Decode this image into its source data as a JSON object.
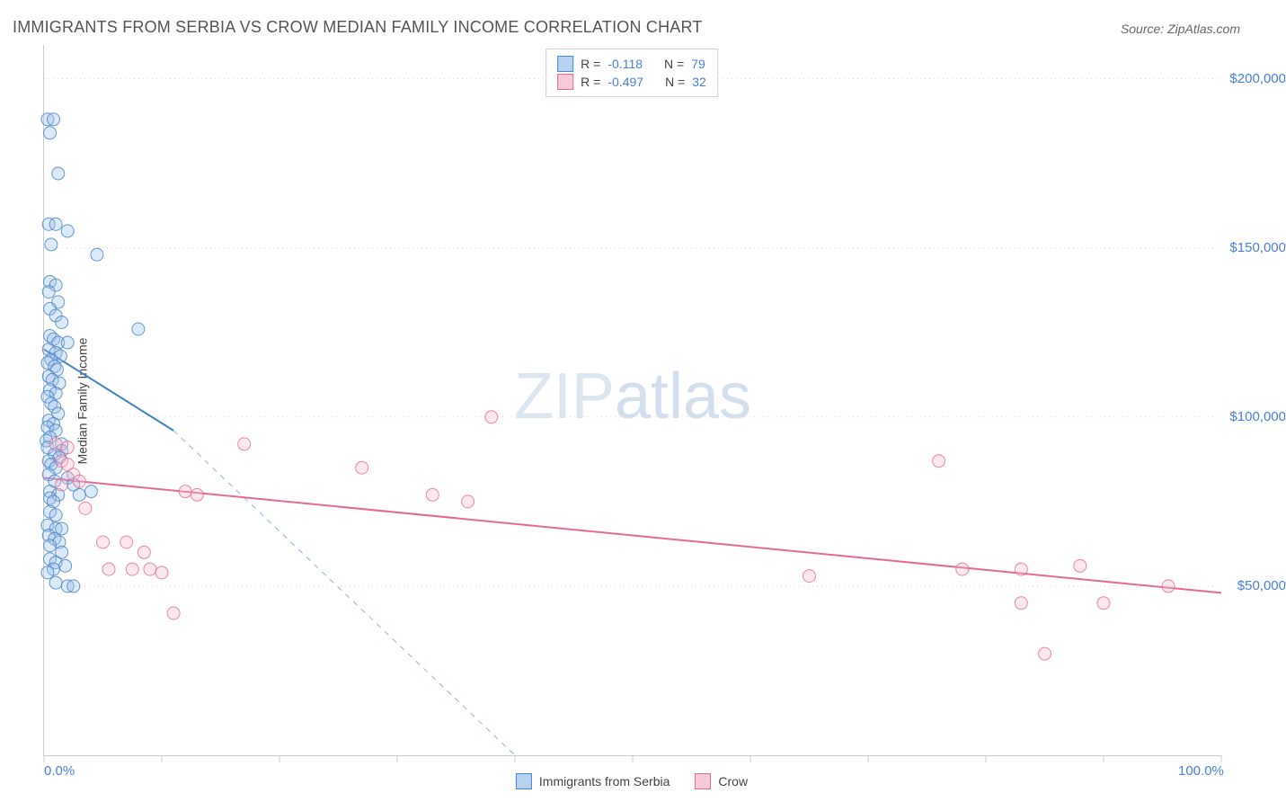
{
  "title": "IMMIGRANTS FROM SERBIA VS CROW MEDIAN FAMILY INCOME CORRELATION CHART",
  "source": "Source: ZipAtlas.com",
  "watermark_bold": "ZIP",
  "watermark_thin": "atlas",
  "chart": {
    "type": "scatter",
    "ylabel": "Median Family Income",
    "background_color": "#ffffff",
    "grid_color": "#d6d6d6",
    "axis_color": "#cccccc",
    "tick_label_color": "#4a7fd6",
    "tick_fontsize": 15,
    "title_fontsize": 18,
    "title_color": "#555555",
    "ylabel_fontsize": 14,
    "xlim": [
      0,
      100
    ],
    "ylim": [
      0,
      210000
    ],
    "xticks": [
      0,
      10,
      20,
      30,
      40,
      50,
      60,
      70,
      80,
      90,
      100
    ],
    "yticks": [
      50000,
      100000,
      150000,
      200000
    ],
    "xtick_labels": {
      "0": "0.0%",
      "100": "100.0%"
    },
    "ytick_labels": {
      "50000": "$50,000",
      "100000": "$100,000",
      "150000": "$150,000",
      "200000": "$200,000"
    },
    "marker_radius": 7,
    "marker_fill_opacity": 0.35,
    "series": [
      {
        "name": "Immigrants from Serbia",
        "color": "#4680c7",
        "fill": "#9cc1e8",
        "R": "-0.118",
        "N": "79",
        "trend": {
          "x1": 0,
          "y1": 120000,
          "x2": 11,
          "y2": 96000,
          "dash_x2": 40,
          "dash_y2": 0,
          "stroke_width": 2
        },
        "points": [
          [
            0.3,
            188000
          ],
          [
            0.8,
            188000
          ],
          [
            0.5,
            184000
          ],
          [
            1.2,
            172000
          ],
          [
            0.4,
            157000
          ],
          [
            1.0,
            157000
          ],
          [
            2.0,
            155000
          ],
          [
            0.6,
            151000
          ],
          [
            4.5,
            148000
          ],
          [
            0.5,
            140000
          ],
          [
            1.0,
            139000
          ],
          [
            0.4,
            137000
          ],
          [
            1.2,
            134000
          ],
          [
            0.5,
            132000
          ],
          [
            1.0,
            130000
          ],
          [
            1.5,
            128000
          ],
          [
            8.0,
            126000
          ],
          [
            0.5,
            124000
          ],
          [
            0.8,
            123000
          ],
          [
            1.2,
            122000
          ],
          [
            2.0,
            122000
          ],
          [
            0.4,
            120000
          ],
          [
            1.0,
            119000
          ],
          [
            1.4,
            118000
          ],
          [
            0.6,
            117000
          ],
          [
            0.3,
            116000
          ],
          [
            0.9,
            115000
          ],
          [
            1.1,
            114000
          ],
          [
            0.4,
            112000
          ],
          [
            0.7,
            111000
          ],
          [
            1.3,
            110000
          ],
          [
            0.5,
            108000
          ],
          [
            1.0,
            107000
          ],
          [
            0.3,
            106000
          ],
          [
            0.6,
            104000
          ],
          [
            0.9,
            103000
          ],
          [
            1.2,
            101000
          ],
          [
            0.4,
            99000
          ],
          [
            0.8,
            98000
          ],
          [
            0.3,
            97000
          ],
          [
            1.0,
            96000
          ],
          [
            0.5,
            94000
          ],
          [
            0.2,
            93000
          ],
          [
            1.5,
            92000
          ],
          [
            0.3,
            91000
          ],
          [
            1.5,
            90000
          ],
          [
            0.9,
            89000
          ],
          [
            1.3,
            88000
          ],
          [
            0.4,
            87000
          ],
          [
            0.6,
            86000
          ],
          [
            1.0,
            85000
          ],
          [
            0.4,
            83000
          ],
          [
            2.0,
            82000
          ],
          [
            0.9,
            81000
          ],
          [
            2.5,
            80000
          ],
          [
            0.5,
            78000
          ],
          [
            1.2,
            77000
          ],
          [
            3.0,
            77000
          ],
          [
            0.5,
            76000
          ],
          [
            0.8,
            75000
          ],
          [
            4.0,
            78000
          ],
          [
            0.5,
            72000
          ],
          [
            1.0,
            71000
          ],
          [
            0.3,
            68000
          ],
          [
            1.0,
            67000
          ],
          [
            1.5,
            67000
          ],
          [
            0.4,
            65000
          ],
          [
            0.9,
            64000
          ],
          [
            1.3,
            63000
          ],
          [
            0.5,
            62000
          ],
          [
            1.5,
            60000
          ],
          [
            0.5,
            58000
          ],
          [
            1.0,
            57000
          ],
          [
            1.8,
            56000
          ],
          [
            0.8,
            55000
          ],
          [
            0.3,
            54000
          ],
          [
            1.0,
            51000
          ],
          [
            2.0,
            50000
          ],
          [
            2.5,
            50000
          ]
        ]
      },
      {
        "name": "Crow",
        "color": "#e56b95",
        "fill": "#f5bccc",
        "R": "-0.497",
        "N": "32",
        "trend": {
          "x1": 0,
          "y1": 82000,
          "x2": 100,
          "y2": 48000,
          "stroke_width": 2
        },
        "points": [
          [
            1.0,
            92000
          ],
          [
            2.0,
            91000
          ],
          [
            1.5,
            87000
          ],
          [
            2.0,
            86000
          ],
          [
            17.0,
            92000
          ],
          [
            2.5,
            83000
          ],
          [
            3.0,
            81000
          ],
          [
            1.5,
            80000
          ],
          [
            12.0,
            78000
          ],
          [
            13.0,
            77000
          ],
          [
            27.0,
            85000
          ],
          [
            3.5,
            73000
          ],
          [
            33.0,
            77000
          ],
          [
            36.0,
            75000
          ],
          [
            38.0,
            100000
          ],
          [
            5.0,
            63000
          ],
          [
            7.0,
            63000
          ],
          [
            8.5,
            60000
          ],
          [
            5.5,
            55000
          ],
          [
            7.5,
            55000
          ],
          [
            9.0,
            55000
          ],
          [
            10.0,
            54000
          ],
          [
            11.0,
            42000
          ],
          [
            65.0,
            53000
          ],
          [
            76.0,
            87000
          ],
          [
            78.0,
            55000
          ],
          [
            83.0,
            55000
          ],
          [
            88.0,
            56000
          ],
          [
            83.0,
            45000
          ],
          [
            90.0,
            45000
          ],
          [
            85.0,
            30000
          ],
          [
            95.5,
            50000
          ]
        ]
      }
    ]
  },
  "legend_top": {
    "r_label": "R =",
    "n_label": "N ="
  },
  "legend_bottom": [
    {
      "swatch": "blue",
      "label": "Immigrants from Serbia"
    },
    {
      "swatch": "pink",
      "label": "Crow"
    }
  ]
}
